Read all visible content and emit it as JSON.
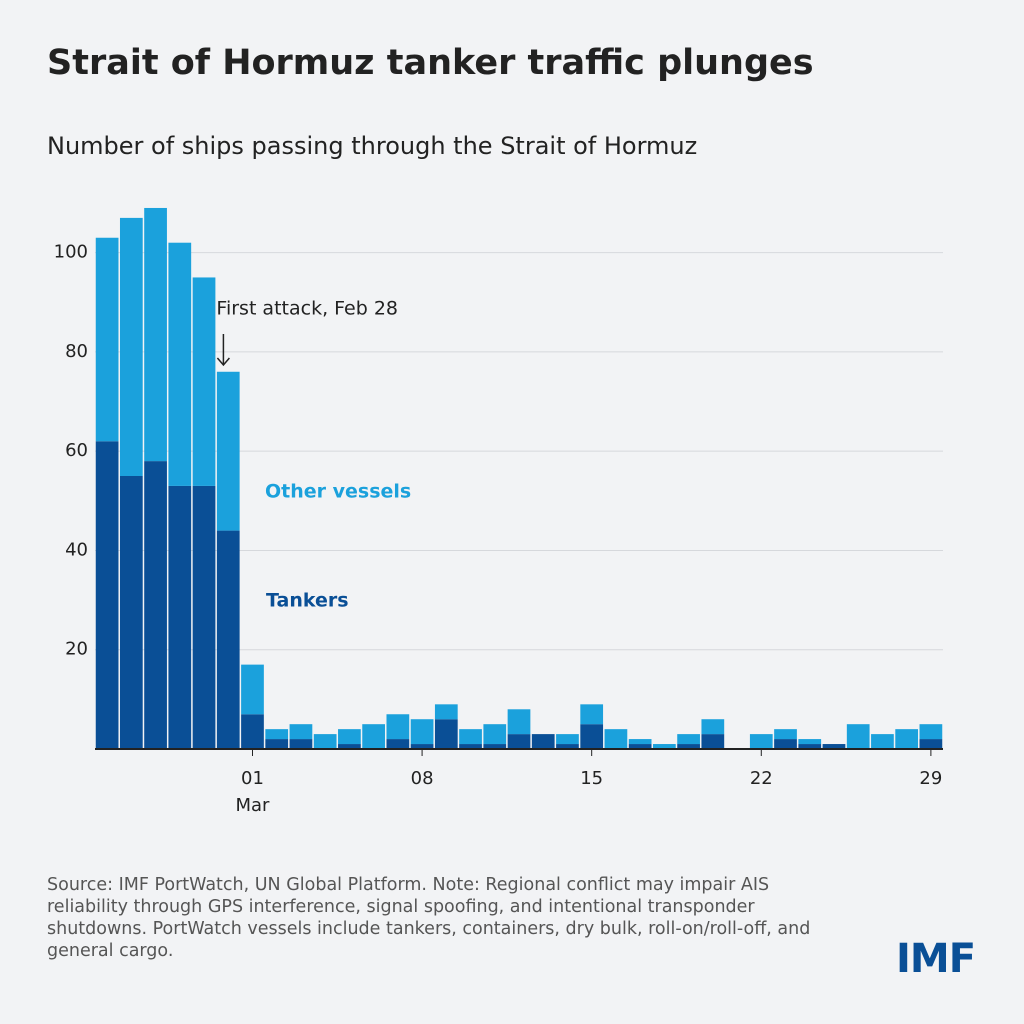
{
  "chart_data": {
    "type": "stacked_bar",
    "title": "Strait of Hormuz tanker traffic plunges",
    "subtitle": "Number of ships passing through the Strait of Hormuz",
    "categories": [
      null,
      null,
      null,
      null,
      null,
      null,
      "01",
      null,
      null,
      null,
      null,
      null,
      null,
      "08",
      null,
      null,
      null,
      null,
      null,
      null,
      "15",
      null,
      null,
      null,
      null,
      null,
      null,
      "22",
      null,
      null,
      null,
      null,
      null,
      null,
      "29"
    ],
    "x_month_label": "Mar",
    "series": [
      {
        "name": "Tankers",
        "color": "#0a4f96",
        "values": [
          62,
          55,
          58,
          53,
          53,
          44,
          7,
          2,
          2,
          0,
          1,
          0,
          2,
          1,
          6,
          1,
          1,
          3,
          3,
          1,
          5,
          0,
          1,
          0,
          1,
          3,
          0,
          0,
          2,
          1,
          1,
          0,
          0,
          0,
          2
        ]
      },
      {
        "name": "Other vessels",
        "color": "#1ba1dc",
        "values": [
          41,
          52,
          51,
          49,
          42,
          32,
          10,
          2,
          3,
          3,
          3,
          5,
          5,
          5,
          3,
          3,
          4,
          5,
          0,
          2,
          4,
          4,
          1,
          1,
          2,
          3,
          0,
          3,
          2,
          1,
          0,
          5,
          3,
          4,
          3
        ]
      }
    ],
    "ylim": [
      0,
      110
    ],
    "yticks": [
      20,
      40,
      60,
      80,
      100
    ],
    "grid": true,
    "annotation": {
      "text": "First attack, Feb 28",
      "index": 5
    },
    "note": "Source: IMF PortWatch, UN Global Platform. Note: Regional conflict may impair AIS reliability through GPS interference, signal spoofing, and intentional transponder shutdowns. PortWatch vessels include tankers, containers, dry bulk, roll-on/roll-off, and general cargo.",
    "logo": "IMF"
  }
}
